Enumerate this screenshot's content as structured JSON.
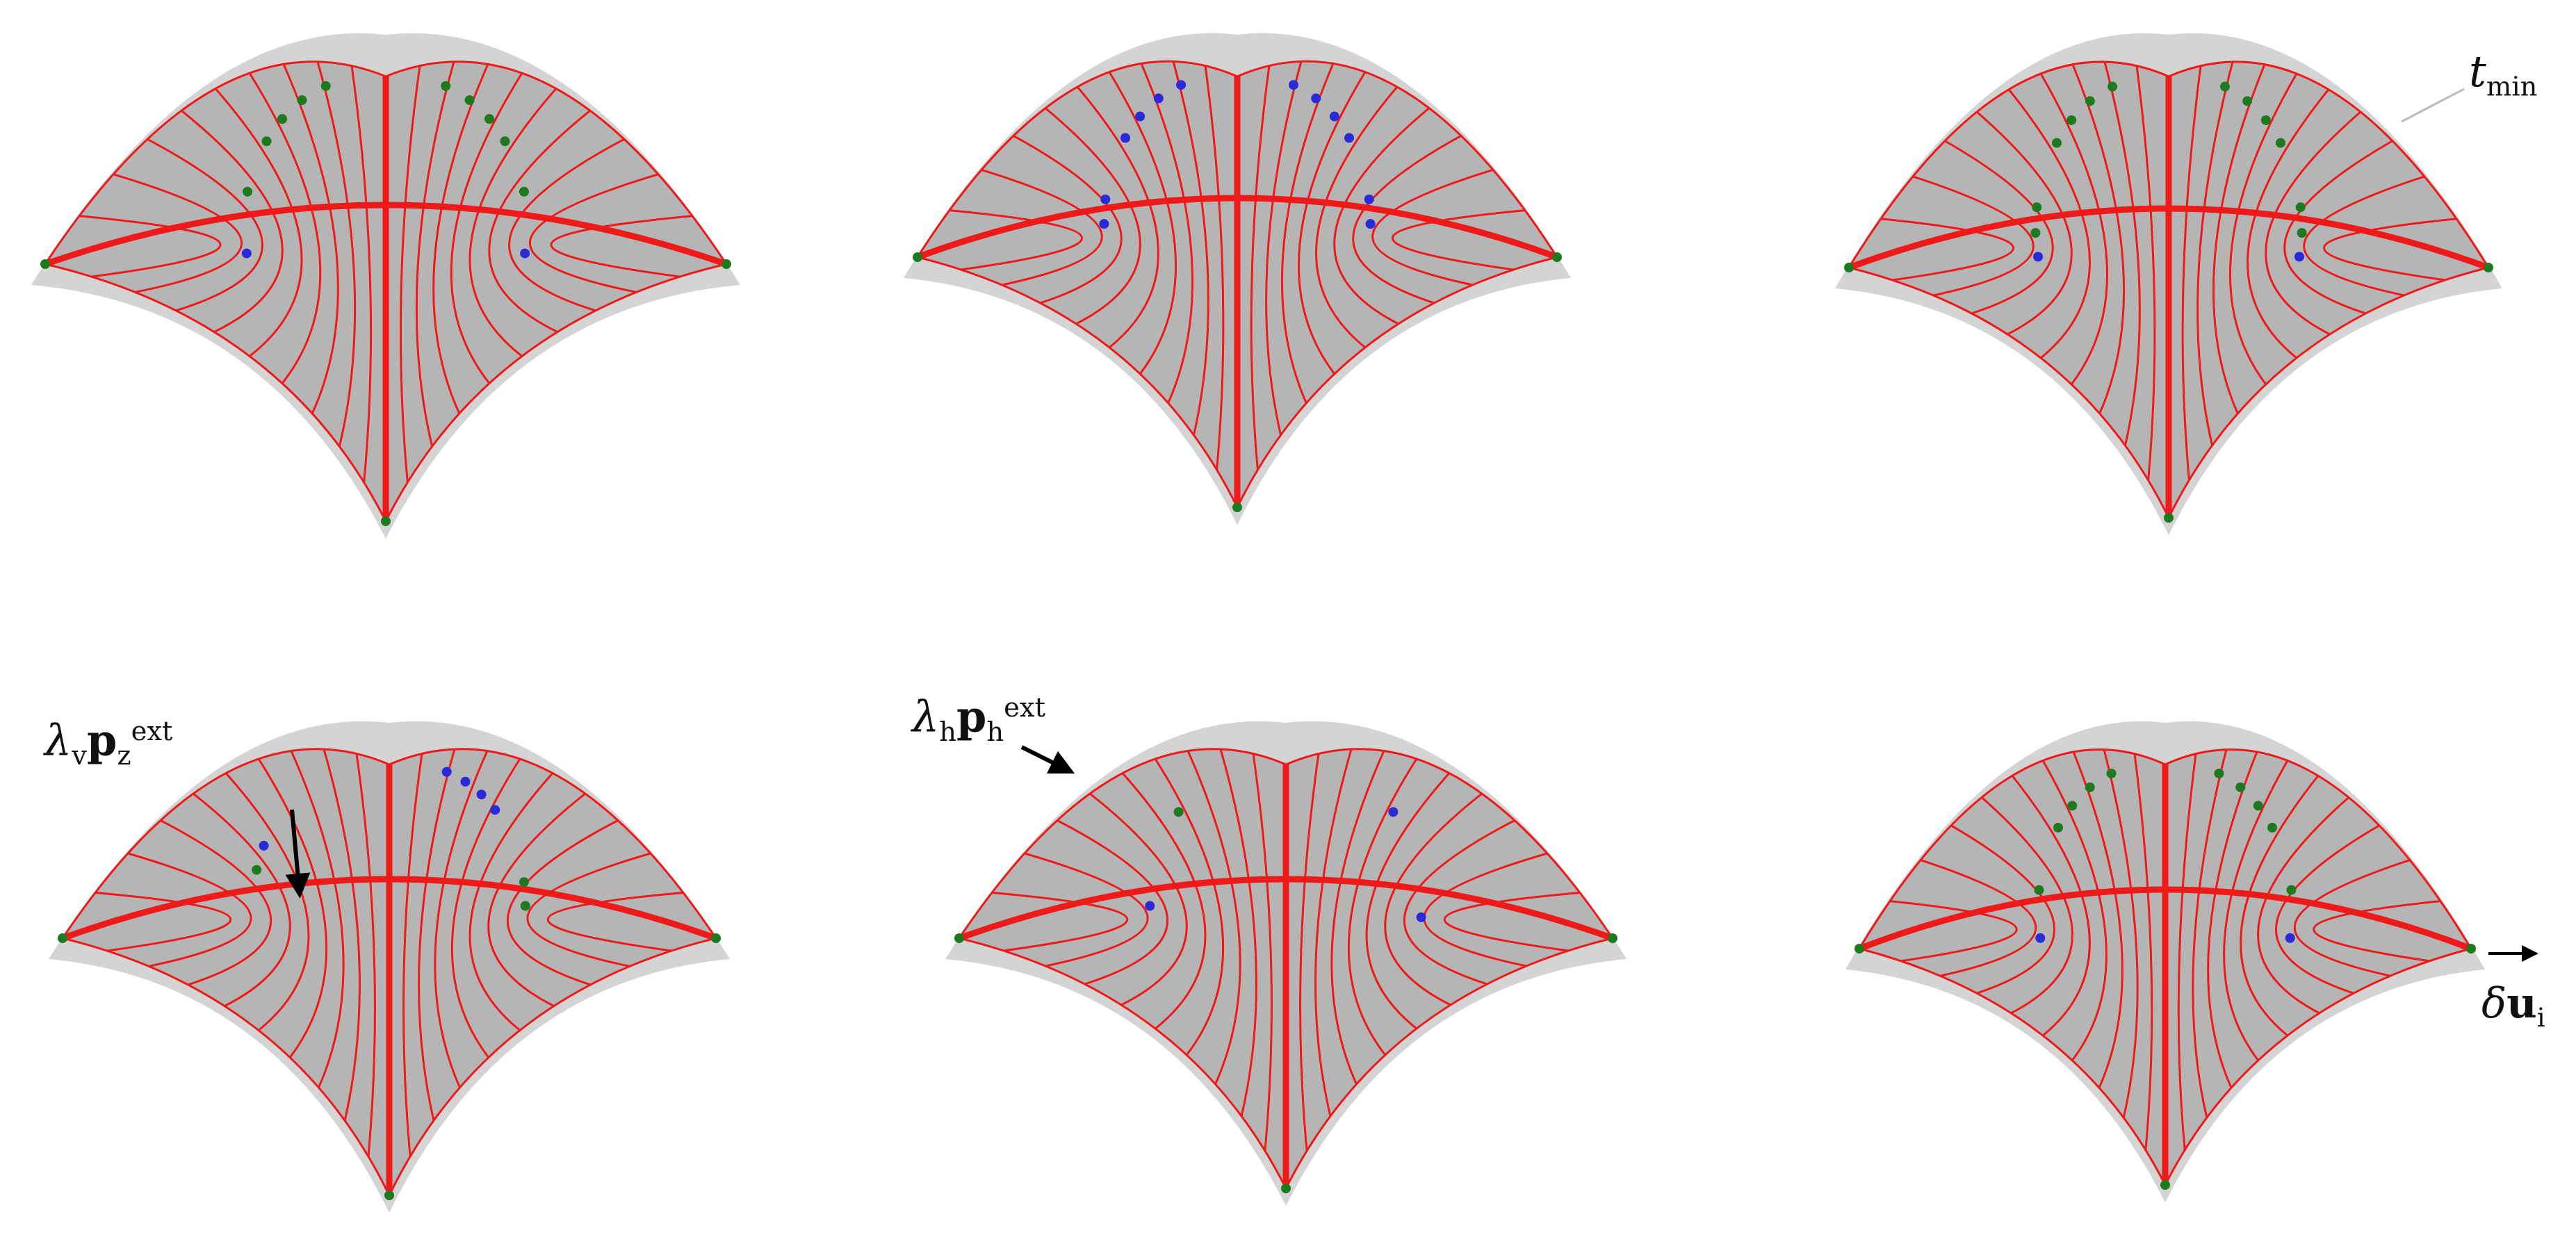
{
  "annotations": {
    "tmin": {
      "symbol": "t",
      "sub": "min"
    },
    "lambda_v": {
      "lambda": "λ",
      "lambda_sub": "v",
      "p": "p",
      "p_sub": "z",
      "p_sup": "ext"
    },
    "lambda_h": {
      "lambda": "λ",
      "lambda_sub": "h",
      "p": "p",
      "p_sub": "h",
      "p_sup": "ext"
    },
    "delta_u": {
      "delta": "δ",
      "u": "u",
      "u_sub": "i"
    }
  },
  "colors": {
    "surface": "#b5b5b5",
    "shadow": "#d4d4d4",
    "grid_line": "#ee1a1a",
    "support_green": "#1e7a1e",
    "node_blue": "#2a2ad8",
    "arrow": "#000000"
  },
  "panels": [
    {
      "id": "top-left",
      "description_marker": "grid-shell-variant-1"
    },
    {
      "id": "top-center",
      "description_marker": "grid-shell-variant-2"
    },
    {
      "id": "top-right",
      "description_marker": "grid-shell-variant-3"
    },
    {
      "id": "bottom-left",
      "description_marker": "grid-shell-variant-4"
    },
    {
      "id": "bottom-center",
      "description_marker": "grid-shell-variant-5"
    },
    {
      "id": "bottom-right",
      "description_marker": "grid-shell-variant-6"
    }
  ]
}
